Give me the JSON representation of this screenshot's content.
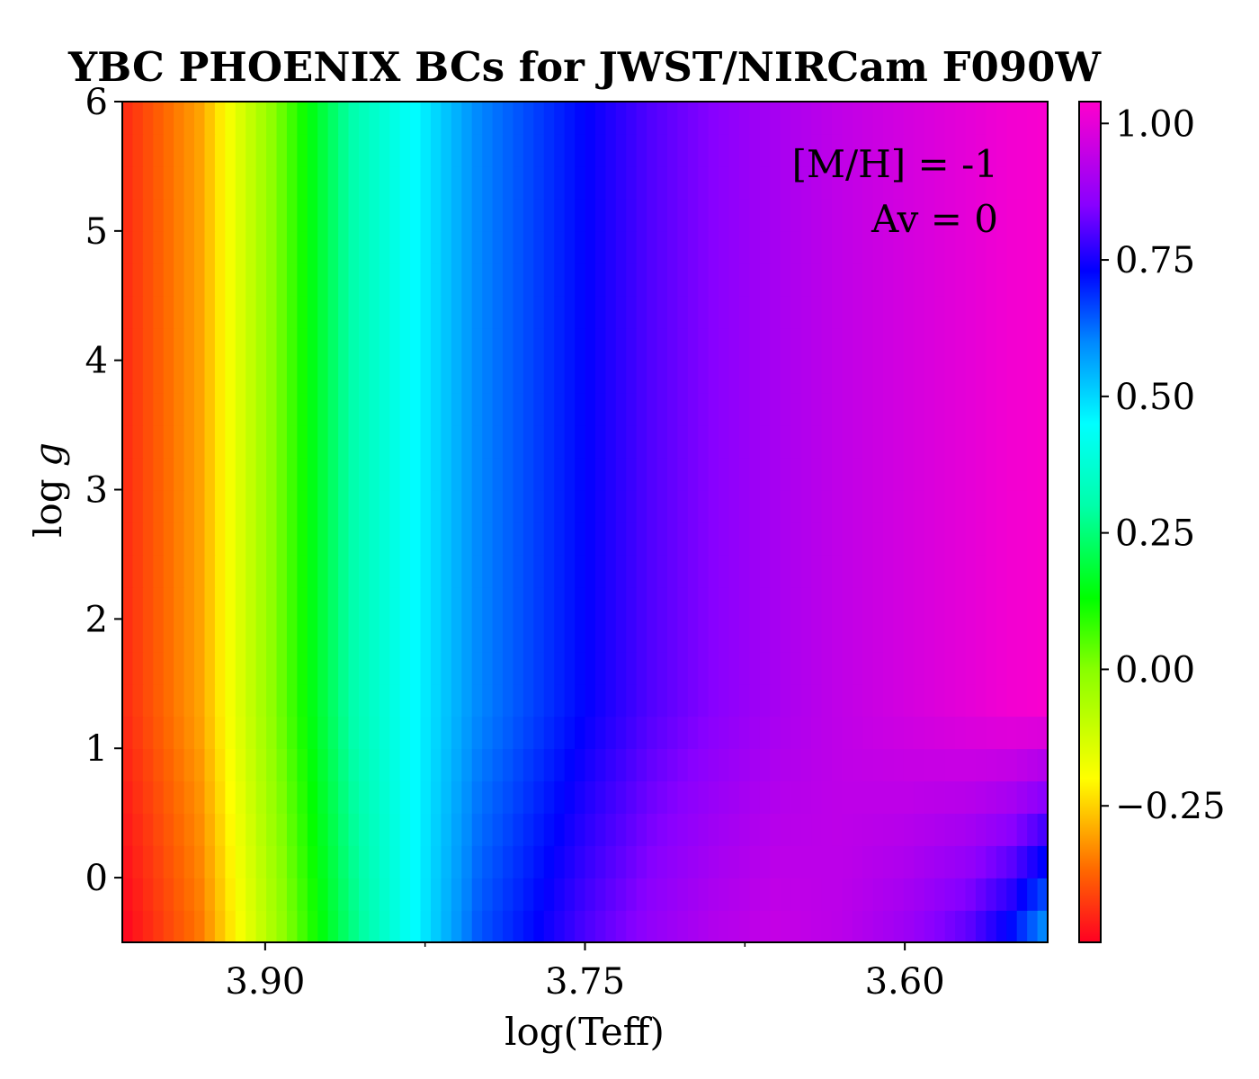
{
  "chart_data": {
    "type": "heatmap",
    "title": "YBC PHOENIX BCs for JWST/NIRCam F090W",
    "xlabel": "log(Teff)",
    "ylabel_prefix": "log ",
    "ylabel_var": "g",
    "xlim": [
      3.967,
      3.533
    ],
    "ylim": [
      -0.5,
      6
    ],
    "x_ticks": [
      3.9,
      3.75,
      3.6
    ],
    "x_tick_labels": [
      "3.90",
      "3.75",
      "3.60"
    ],
    "x_minor_ticks": [
      3.975,
      3.825,
      3.675,
      3.525
    ],
    "y_ticks": [
      0,
      1,
      2,
      3,
      4,
      5,
      6
    ],
    "y_tick_labels": [
      "0",
      "1",
      "2",
      "3",
      "4",
      "5",
      "6"
    ],
    "annotations": [
      "[M/H] = -1",
      "Av = 0"
    ],
    "colorbar": {
      "cmap": "gist_rainbow",
      "range": [
        -0.5,
        1.04
      ],
      "ticks": [
        1.0,
        0.75,
        0.5,
        0.25,
        0.0,
        -0.25
      ],
      "tick_labels": [
        "1.00",
        "0.75",
        "0.50",
        "0.25",
        "0.00",
        "−0.25"
      ],
      "stops": [
        {
          "value": -0.5,
          "color": "#ff0022"
        },
        {
          "value": -0.37,
          "color": "#ff6600"
        },
        {
          "value": -0.2,
          "color": "#ffff00"
        },
        {
          "value": 0.0,
          "color": "#88ff00"
        },
        {
          "value": 0.13,
          "color": "#00ff00"
        },
        {
          "value": 0.3,
          "color": "#00ffaa"
        },
        {
          "value": 0.45,
          "color": "#00ffff"
        },
        {
          "value": 0.6,
          "color": "#0088ff"
        },
        {
          "value": 0.73,
          "color": "#0000ff"
        },
        {
          "value": 0.85,
          "color": "#8800ff"
        },
        {
          "value": 1.04,
          "color": "#ff00cc"
        }
      ]
    },
    "bc_profile_logg6": {
      "logTeff": [
        3.967,
        3.93,
        3.89,
        3.86,
        3.83,
        3.8,
        3.75,
        3.72,
        3.69,
        3.66,
        3.63,
        3.6,
        3.57,
        3.55,
        3.533
      ],
      "bc": [
        -0.45,
        -0.3,
        0.05,
        0.3,
        0.45,
        0.6,
        0.73,
        0.8,
        0.85,
        0.9,
        0.94,
        0.97,
        1.0,
        1.02,
        1.03
      ]
    },
    "bc_profile_logg_m05": {
      "logTeff": [
        3.967,
        3.93,
        3.89,
        3.86,
        3.83,
        3.8,
        3.75,
        3.72,
        3.69,
        3.66,
        3.63,
        3.6,
        3.57,
        3.55,
        3.533
      ],
      "bc": [
        -0.5,
        -0.35,
        0.0,
        0.25,
        0.45,
        0.65,
        0.8,
        0.87,
        0.92,
        0.95,
        0.93,
        0.88,
        0.8,
        0.7,
        0.55
      ]
    }
  }
}
